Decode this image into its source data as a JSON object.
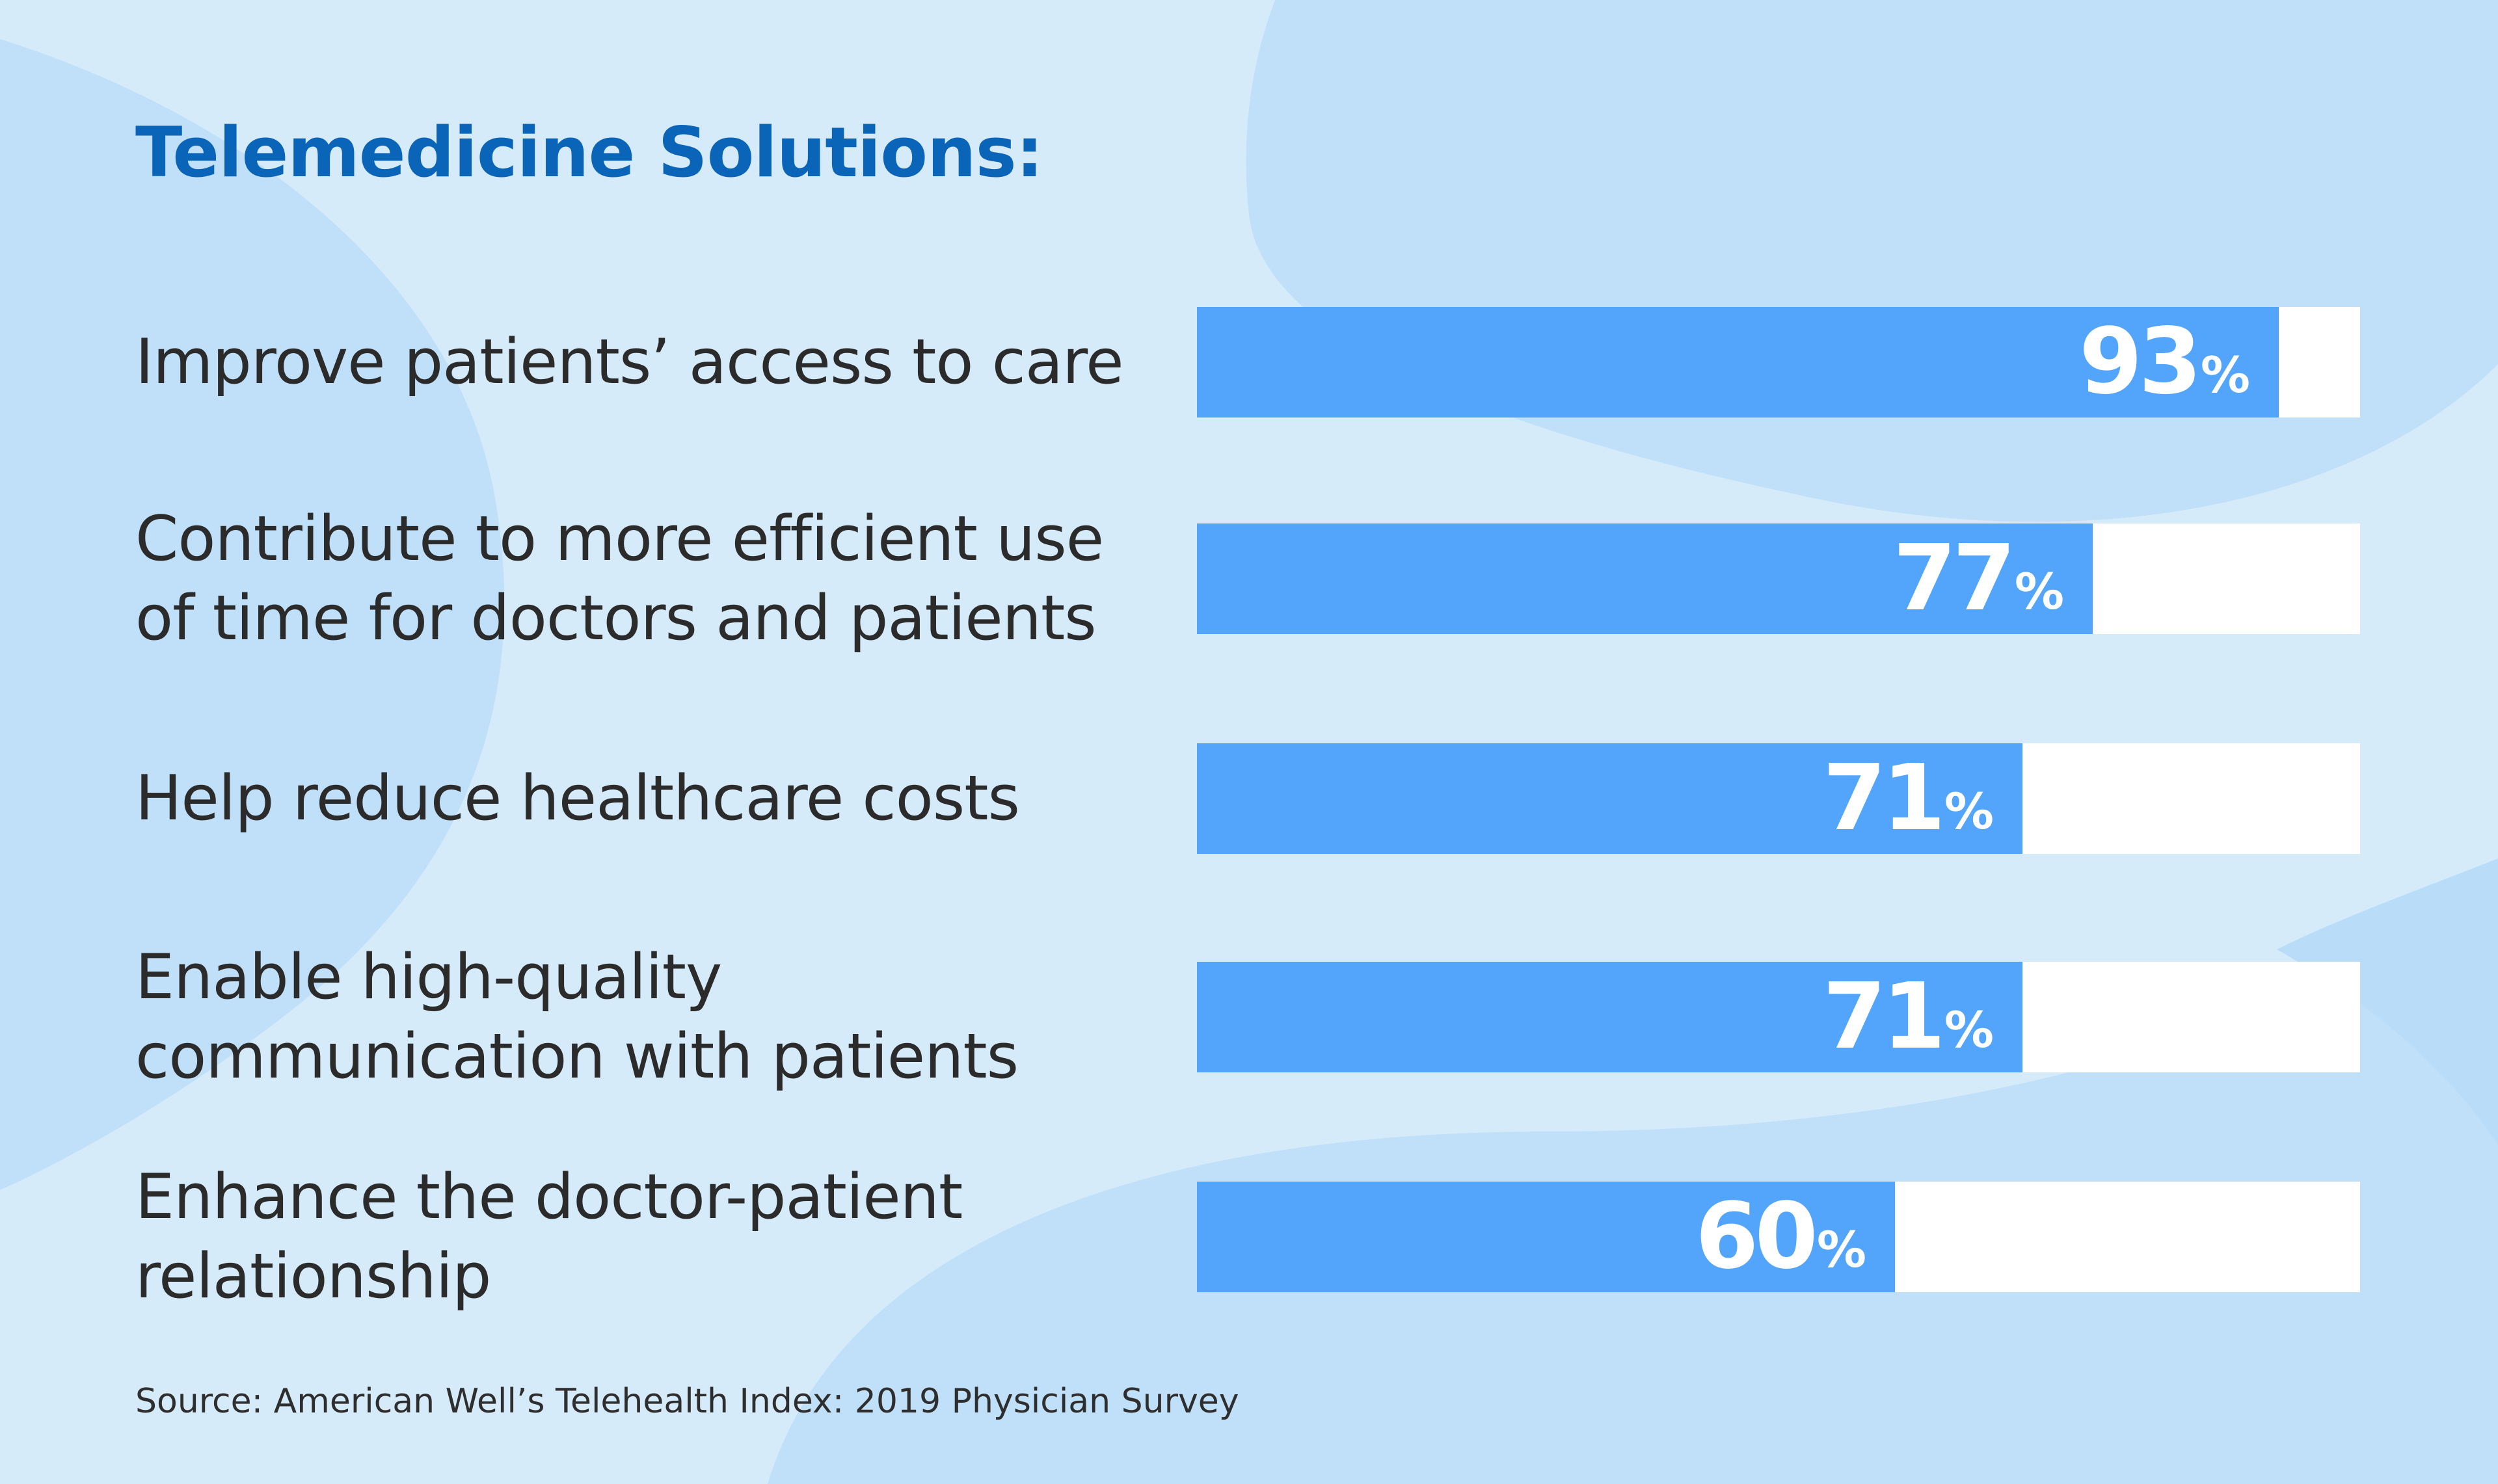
{
  "title": "Telemedicine Solutions:",
  "source": "Source: American Well’s Telehealth Index: 2019 Physician Survey",
  "colors": {
    "background": "#d6ebfa",
    "bar": "#52a5fb",
    "track": "#ffffff",
    "title": "#0a64b8",
    "text": "#2b2b2b"
  },
  "chart_data": {
    "type": "bar",
    "orientation": "horizontal",
    "categories": [
      [
        "Improve patients’ access to care"
      ],
      [
        "Contribute to more efficient use",
        "of time for doctors and patients"
      ],
      [
        "Help reduce healthcare costs"
      ],
      [
        "Enable high-quality",
        "communication with patients"
      ],
      [
        "Enhance the doctor-patient",
        "relationship"
      ]
    ],
    "values": [
      93,
      77,
      71,
      71,
      60
    ],
    "unit": "%",
    "xlim": [
      0,
      100
    ],
    "grid": false,
    "legend": "none"
  }
}
